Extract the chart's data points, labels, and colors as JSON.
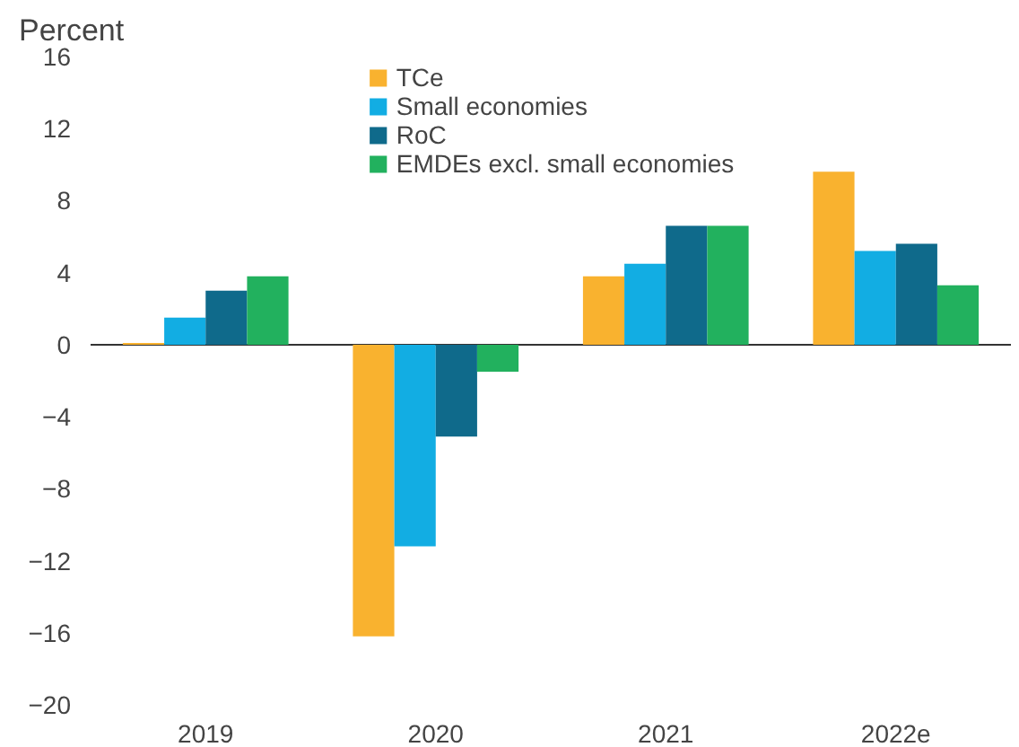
{
  "chart_data": {
    "type": "bar",
    "ylabel": "Percent",
    "categories": [
      "2019",
      "2020",
      "2021",
      "2022e"
    ],
    "series": [
      {
        "name": "TCe",
        "color": "#f9b22f",
        "values": [
          0.1,
          -16.2,
          3.8,
          9.6
        ]
      },
      {
        "name": "Small economies",
        "color": "#12ade3",
        "values": [
          1.5,
          -11.2,
          4.5,
          5.2
        ]
      },
      {
        "name": "RoC",
        "color": "#0f6a8b",
        "values": [
          3.0,
          -5.1,
          6.6,
          5.6
        ]
      },
      {
        "name": "EMDEs excl. small economies",
        "color": "#22b15e",
        "values": [
          3.8,
          -1.5,
          6.6,
          3.3
        ]
      }
    ],
    "ylim": [
      -20,
      16
    ],
    "ref_lines": [
      {
        "axis": "y",
        "value": 0,
        "color": "#333333"
      }
    ],
    "yticks": [
      -20,
      -16,
      -12,
      -8,
      -4,
      0,
      4,
      8,
      12,
      16
    ],
    "grid": false,
    "legend": "top"
  }
}
